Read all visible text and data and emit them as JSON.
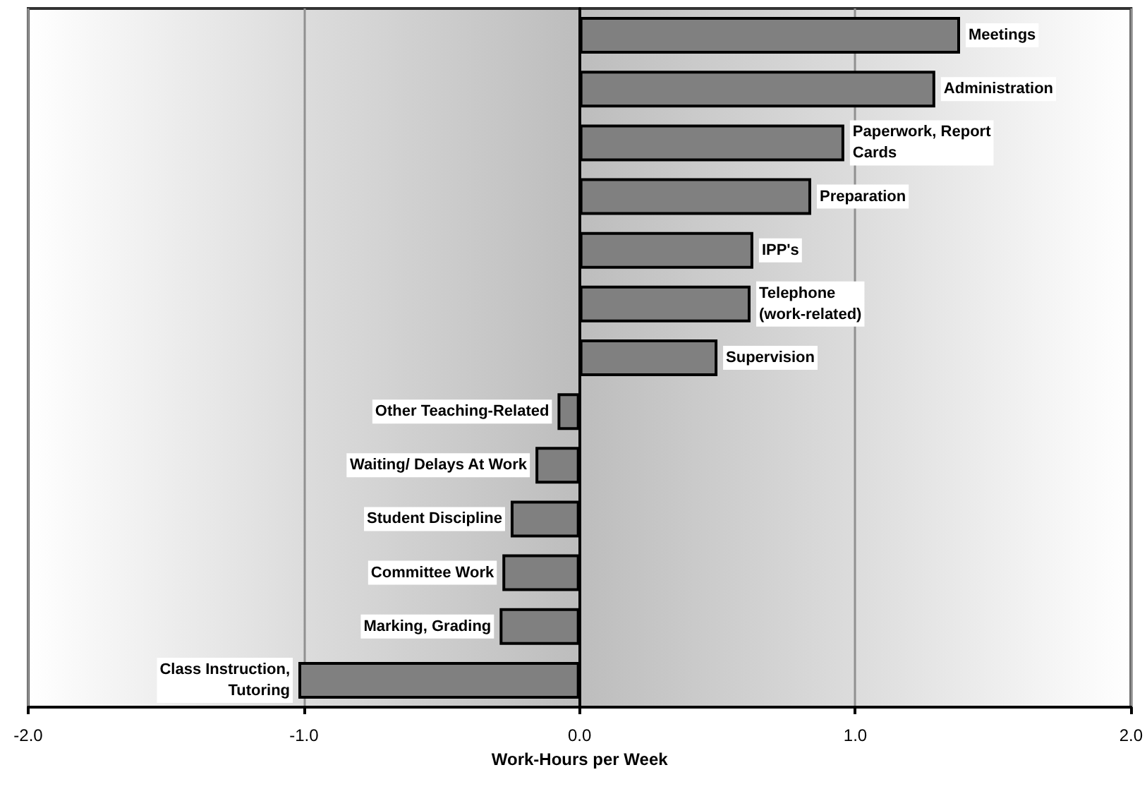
{
  "chart_data": {
    "type": "bar",
    "orientation": "horizontal",
    "xlabel": "Work-Hours per Week",
    "categories": [
      "Meetings",
      "Administration",
      "Paperwork, Report\nCards",
      "Preparation",
      "IPP's",
      "Telephone\n(work-related)",
      "Supervision",
      "Other Teaching-Related",
      "Waiting/ Delays At Work",
      "Student Discipline",
      "Committee Work",
      "Marking, Grading",
      "Class Instruction,\nTutoring"
    ],
    "values": [
      1.38,
      1.29,
      0.96,
      0.84,
      0.63,
      0.62,
      0.5,
      -0.08,
      -0.16,
      -0.25,
      -0.28,
      -0.29,
      -1.02
    ],
    "color": "#808080",
    "xlim": [
      -2,
      2
    ],
    "xticks": [
      {
        "value": -2,
        "label": "-2.0"
      },
      {
        "value": -1,
        "label": "-1.0"
      },
      {
        "value": 0,
        "label": "0.0"
      },
      {
        "value": 1,
        "label": "1.0"
      },
      {
        "value": 2,
        "label": "2.0"
      }
    ],
    "grid": "x",
    "tick_labels": "x"
  }
}
